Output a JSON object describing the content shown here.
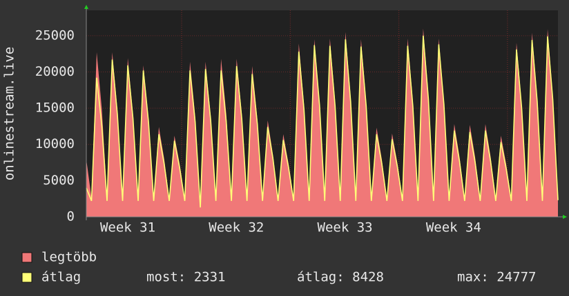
{
  "chart_data": {
    "type": "area",
    "y_label": "onlinestream.live",
    "ylim": [
      0,
      28500
    ],
    "yticks": [
      0,
      5000,
      10000,
      15000,
      20000,
      25000
    ],
    "grid": true,
    "week_labels": [
      "Week 31",
      "Week 32",
      "Week 33",
      "Week 34"
    ],
    "series": [
      {
        "name": "legtöbb",
        "color": "#f07878",
        "fill": true,
        "values": [
          7900,
          2600,
          22700,
          14800,
          2600,
          22700,
          14800,
          2600,
          21900,
          14200,
          2600,
          20900,
          13600,
          2600,
          12400,
          8100,
          2600,
          11200,
          7300,
          2600,
          21400,
          13900,
          1600,
          21400,
          13900,
          2600,
          21800,
          14200,
          2600,
          21800,
          14200,
          2600,
          20800,
          13500,
          2600,
          13300,
          8600,
          2600,
          11400,
          7400,
          2600,
          23900,
          15500,
          2600,
          24500,
          15900,
          2600,
          24600,
          16000,
          2600,
          25500,
          16600,
          2600,
          24500,
          15900,
          2600,
          12300,
          8000,
          2600,
          11500,
          7500,
          2600,
          24600,
          16000,
          2600,
          26000,
          16900,
          2600,
          24600,
          16000,
          2600,
          12800,
          8300,
          2600,
          12700,
          8300,
          2600,
          12800,
          8300,
          2600,
          11200,
          7300,
          2600,
          24000,
          15600,
          2600,
          25400,
          16500,
          2600,
          25900,
          16800,
          2600
        ]
      },
      {
        "name": "átlag",
        "color": "#ffff78",
        "fill": false,
        "values": [
          4000,
          2200,
          19200,
          12500,
          2200,
          21700,
          14100,
          2200,
          20900,
          13600,
          2200,
          20200,
          13100,
          2200,
          11400,
          7400,
          2200,
          10500,
          6800,
          2200,
          20200,
          13100,
          1300,
          20400,
          13300,
          2200,
          20200,
          13100,
          2200,
          20800,
          13500,
          2200,
          19700,
          12800,
          2200,
          12400,
          8100,
          2200,
          10600,
          6900,
          2200,
          22800,
          14800,
          2200,
          23700,
          15400,
          2200,
          23600,
          15300,
          2200,
          24500,
          15900,
          2200,
          23500,
          15300,
          2200,
          11400,
          7400,
          2200,
          10700,
          7000,
          2200,
          23600,
          15300,
          2200,
          25000,
          16300,
          2200,
          23800,
          15500,
          2200,
          11900,
          7700,
          2200,
          11700,
          7600,
          2200,
          11900,
          7700,
          2200,
          10300,
          6700,
          2200,
          23100,
          15000,
          2200,
          24400,
          15900,
          2200,
          24900,
          16200,
          2300
        ]
      }
    ],
    "stats": [
      {
        "label": "most:",
        "value": 2331
      },
      {
        "label": "átlag:",
        "value": 8428
      },
      {
        "label": "max:",
        "value": 24777
      }
    ]
  }
}
